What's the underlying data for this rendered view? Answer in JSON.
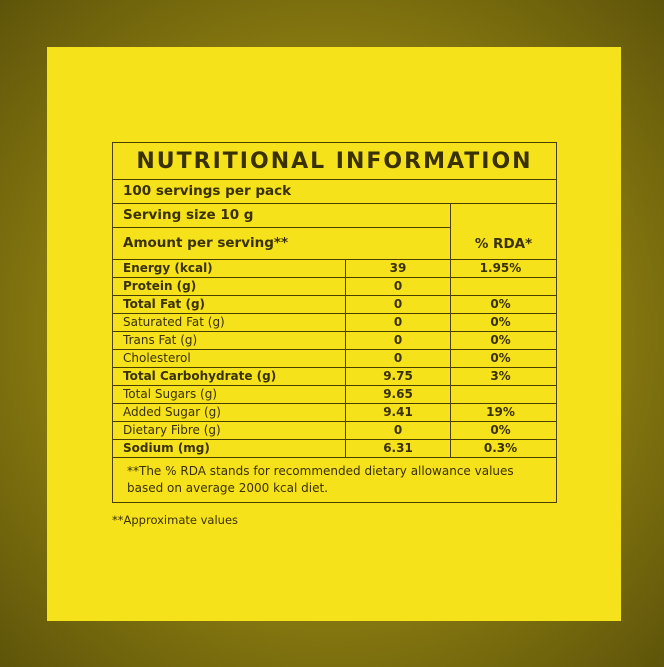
{
  "label": {
    "title": "NUTRITIONAL INFORMATION",
    "servings": "100 servings per pack",
    "serving_size": "Serving size 10 g",
    "amount_header": "Amount per serving**",
    "rda_header": "% RDA*",
    "rows": [
      {
        "name": "Energy (kcal)",
        "amount": "39",
        "rda": "1.95%",
        "bold": true
      },
      {
        "name": "Protein (g)",
        "amount": "0",
        "bold": true
      },
      {
        "name": "Total Fat (g)",
        "amount": "0",
        "rda": "0%",
        "bold": true
      },
      {
        "name": "Saturated Fat (g)",
        "amount": "0",
        "rda": "0%"
      },
      {
        "name": "Trans Fat (g)",
        "amount": "0",
        "rda": "0%"
      },
      {
        "name": "Cholesterol",
        "amount": "0",
        "rda": "0%"
      },
      {
        "name": "Total Carbohydrate (g)",
        "amount": "9.75",
        "rda": "3%",
        "bold": true
      },
      {
        "name": "Total Sugars (g)",
        "amount": "9.65"
      },
      {
        "name": "Added  Sugar (g)",
        "amount": "9.41",
        "rda": "19%"
      },
      {
        "name": "Dietary Fibre (g)",
        "amount": "0",
        "rda": "0%"
      },
      {
        "name": "Sodium (mg)",
        "amount": "6.31",
        "rda": "0.3%",
        "bold": true
      }
    ],
    "footnote": "**The % RDA stands for recommended dietary allowance values based on average 2000 kcal diet.",
    "note": "**Approximate values"
  }
}
